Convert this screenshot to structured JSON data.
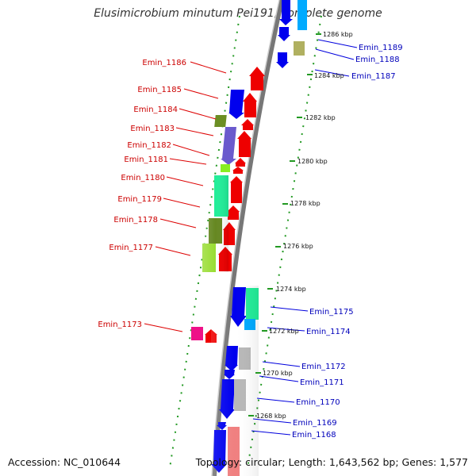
{
  "header": {
    "title": "Elusimicrobium minutum Pei191, complete genome"
  },
  "footer": {
    "accession": "Accession: NC_010644",
    "summary": "Topology: circular; Length: 1,643,562 bp; Genes: 1,577"
  },
  "colors": {
    "left_strand_label": "#cc0000",
    "right_strand_label": "#0000bb",
    "ruler_dots": "#229922",
    "backbone": "#777777"
  },
  "scale_ticks": [
    "1286 kbp",
    "1284 kbp",
    "1282 kbp",
    "1280 kbp",
    "1278 kbp",
    "1276 kbp",
    "1274 kbp",
    "1272 kbp",
    "1270 kbp",
    "1268 kbp"
  ],
  "left_labels": [
    "Emin_1186",
    "Emin_1185",
    "Emin_1184",
    "Emin_1183",
    "Emin_1182",
    "Emin_1181",
    "Emin_1180",
    "Emin_1179",
    "Emin_1178",
    "Emin_1177",
    "Emin_1173"
  ],
  "right_labels": [
    "Emin_1189",
    "Emin_1188",
    "Emin_1187",
    "Emin_1175",
    "Emin_1174",
    "Emin_1172",
    "Emin_1171",
    "Emin_1170",
    "Emin_1169",
    "Emin_1168"
  ]
}
